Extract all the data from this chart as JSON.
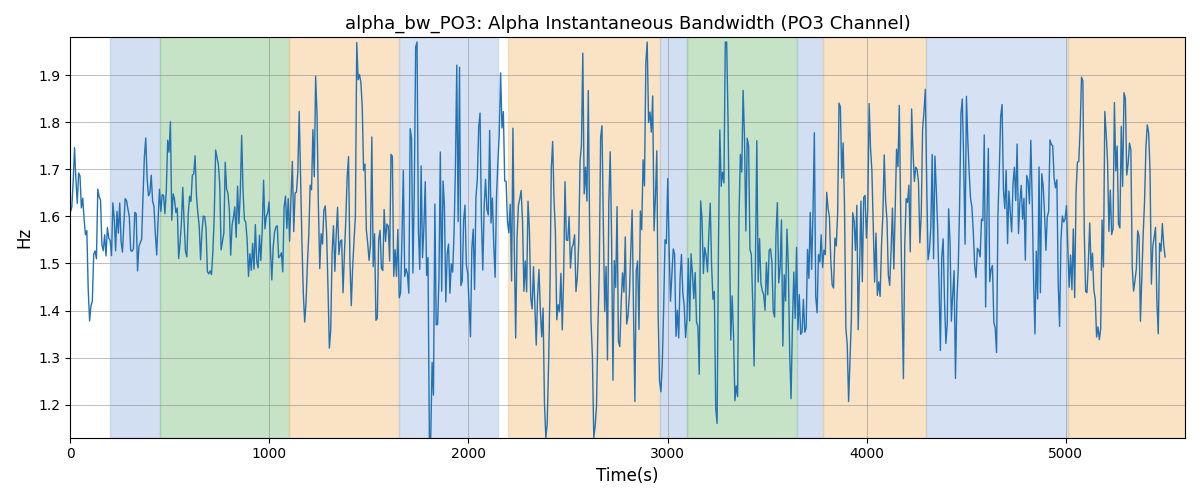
{
  "title": "alpha_bw_PO3: Alpha Instantaneous Bandwidth (PO3 Channel)",
  "xlabel": "Time(s)",
  "ylabel": "Hz",
  "xlim": [
    0,
    5600
  ],
  "ylim": [
    1.13,
    1.98
  ],
  "background_color": "#ffffff",
  "line_color": "#2272b4",
  "line_width": 1.0,
  "colored_bands": [
    {
      "xmin": 200,
      "xmax": 450,
      "color": "#aec6e8",
      "alpha": 0.55
    },
    {
      "xmin": 450,
      "xmax": 1100,
      "color": "#90c890",
      "alpha": 0.5
    },
    {
      "xmin": 1100,
      "xmax": 1650,
      "color": "#f5c98a",
      "alpha": 0.5
    },
    {
      "xmin": 1650,
      "xmax": 2150,
      "color": "#aec6e8",
      "alpha": 0.5
    },
    {
      "xmin": 2200,
      "xmax": 2960,
      "color": "#f5c98a",
      "alpha": 0.5
    },
    {
      "xmin": 2960,
      "xmax": 3100,
      "color": "#aec6e8",
      "alpha": 0.55
    },
    {
      "xmin": 3100,
      "xmax": 3650,
      "color": "#90c890",
      "alpha": 0.5
    },
    {
      "xmin": 3650,
      "xmax": 3780,
      "color": "#aec6e8",
      "alpha": 0.55
    },
    {
      "xmin": 3780,
      "xmax": 4300,
      "color": "#f5c98a",
      "alpha": 0.5
    },
    {
      "xmin": 4300,
      "xmax": 5010,
      "color": "#aec6e8",
      "alpha": 0.5
    },
    {
      "xmin": 5010,
      "xmax": 5600,
      "color": "#f5c98a",
      "alpha": 0.5
    }
  ],
  "seed": 42,
  "n_points": 800,
  "t_start": 0,
  "t_end": 5500
}
